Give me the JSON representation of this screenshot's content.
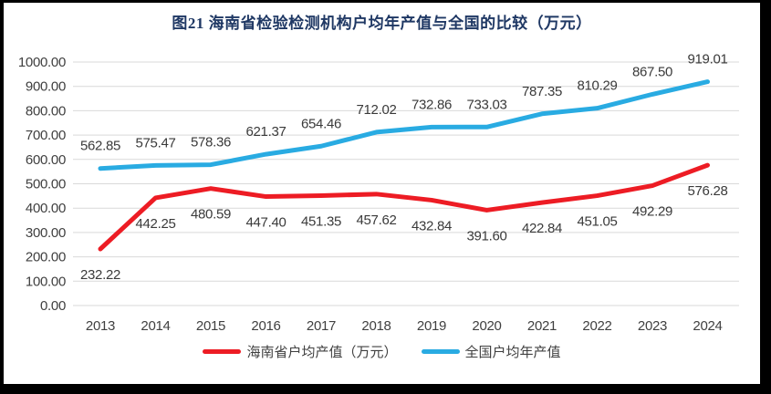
{
  "title": "图21  海南省检验检测机构户均年产值与全国的比较（万元）",
  "colors": {
    "hainan_red": "#ED1C24",
    "national_blue": "#29ABE2",
    "gridline": "#D9D9D9",
    "axis_text": "#404040",
    "data_label_text": "#3A3A3A",
    "title_text": "#1F3864",
    "frame": "#000000",
    "background": "#FFFFFF"
  },
  "legend": [
    {
      "label": "海南省户均产值（万元）",
      "color": "#ED1C24"
    },
    {
      "label": "全国户均年产值",
      "color": "#29ABE2"
    }
  ],
  "chart_data": {
    "type": "line",
    "title": "图21  海南省检验检测机构户均年产值与全国的比较（万元）",
    "categories": [
      "2013",
      "2014",
      "2015",
      "2016",
      "2017",
      "2018",
      "2019",
      "2020",
      "2021",
      "2022",
      "2023",
      "2024"
    ],
    "series": [
      {
        "name": "海南省户均产值（万元）",
        "color": "#ED1C24",
        "label_position": "below",
        "values": [
          232.22,
          442.25,
          480.59,
          447.4,
          451.35,
          457.62,
          432.84,
          391.6,
          422.84,
          451.05,
          492.29,
          576.28
        ]
      },
      {
        "name": "全国户均年产值",
        "color": "#29ABE2",
        "label_position": "above",
        "values": [
          562.85,
          575.47,
          578.36,
          621.37,
          654.46,
          712.02,
          732.86,
          733.03,
          787.35,
          810.29,
          867.5,
          919.01
        ]
      }
    ],
    "xlabel": "",
    "ylabel": "",
    "ylim": [
      0,
      1000
    ],
    "ytick_step": 100,
    "yticks": [
      "1000.00",
      "900.00",
      "800.00",
      "700.00",
      "600.00",
      "500.00",
      "400.00",
      "300.00",
      "200.00",
      "100.00",
      "0.00"
    ],
    "grid": true,
    "legend_position": "bottom"
  }
}
